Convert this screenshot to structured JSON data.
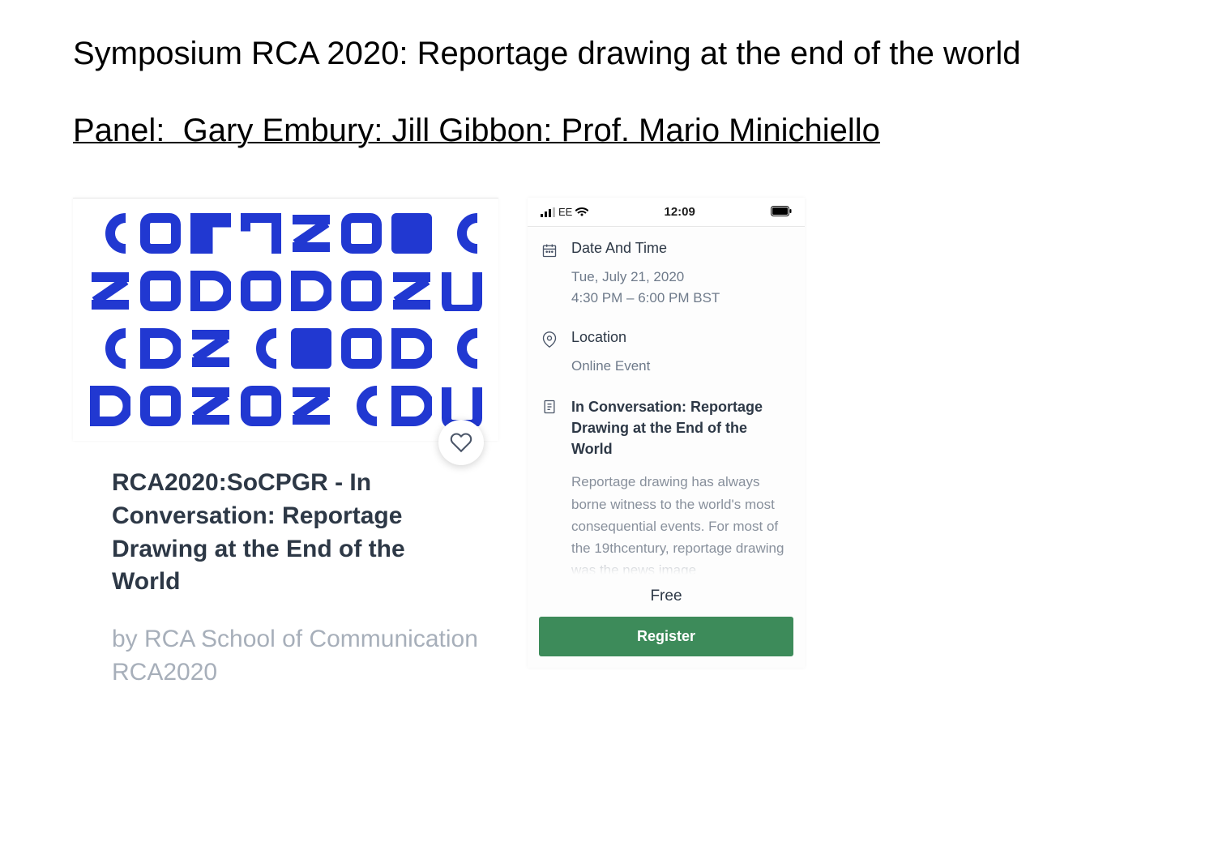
{
  "colors": {
    "brand_blue": "#2138d1",
    "text_dark": "#2d3846",
    "text_muted": "#a7afba",
    "text_grey": "#6e7a8a",
    "register_green": "#3d8b5a",
    "white": "#ffffff"
  },
  "headings": {
    "main": "Symposium RCA 2020: Reportage drawing at the end of the world",
    "panel": "Panel:  Gary Embury: Jill Gibbon: Prof. Mario Minichiello"
  },
  "left": {
    "title": "RCA2020:SoCPGR - In Conversation: Reportage Drawing at the End of the World",
    "byline": "by RCA School of Communication RCA2020",
    "graphic": {
      "rows": 4,
      "cols": 8,
      "color": "#2138d1"
    }
  },
  "phone": {
    "status": {
      "carrier": "EE",
      "time": "12:09"
    },
    "date_time": {
      "heading": "Date And Time",
      "date": "Tue, July 21, 2020",
      "time": "4:30 PM – 6:00 PM BST"
    },
    "location": {
      "heading": "Location",
      "value": "Online Event"
    },
    "description": {
      "title": "In Conversation: Reportage Drawing at the End of the World",
      "body": "Reportage drawing has always borne witness to the world's most consequential events. For most of the 19th​century, reportage drawing was the news image"
    },
    "price": "Free",
    "register_label": "Register"
  }
}
